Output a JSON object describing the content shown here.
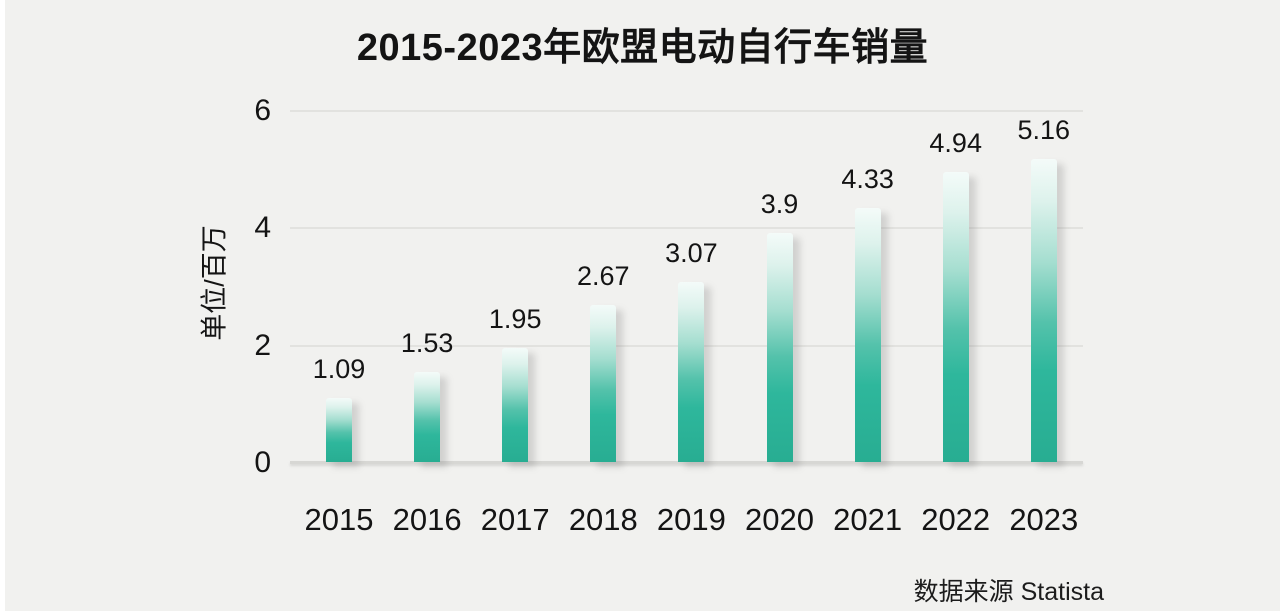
{
  "title": "2015-2023年欧盟电动自行车销量",
  "source": "数据来源 Statista",
  "colors": {
    "background": "#f1f1ef",
    "bar_teal": "#2ab69a",
    "bar_top_tint": "#f4fbf9",
    "gridline": "#e2e2df",
    "axis_line": "#d7d7d4",
    "text": "#141414"
  },
  "chart_data": {
    "type": "bar",
    "title": "2015-2023年欧盟电动自行车销量",
    "categories": [
      "2015",
      "2016",
      "2017",
      "2018",
      "2019",
      "2020",
      "2021",
      "2022",
      "2023"
    ],
    "values": [
      1.09,
      1.53,
      1.95,
      2.67,
      3.07,
      3.9,
      4.33,
      4.94,
      5.16
    ],
    "value_labels": [
      "1.09",
      "1.53",
      "1.95",
      "2.67",
      "3.07",
      "3.9",
      "4.33",
      "4.94",
      "5.16"
    ],
    "xlabel": "",
    "ylabel": "单位/百万",
    "ylim": [
      0,
      6
    ],
    "yticks": [
      0,
      2,
      4,
      6
    ],
    "grid": true,
    "legend": false,
    "source_note": "数据来源 Statista"
  }
}
